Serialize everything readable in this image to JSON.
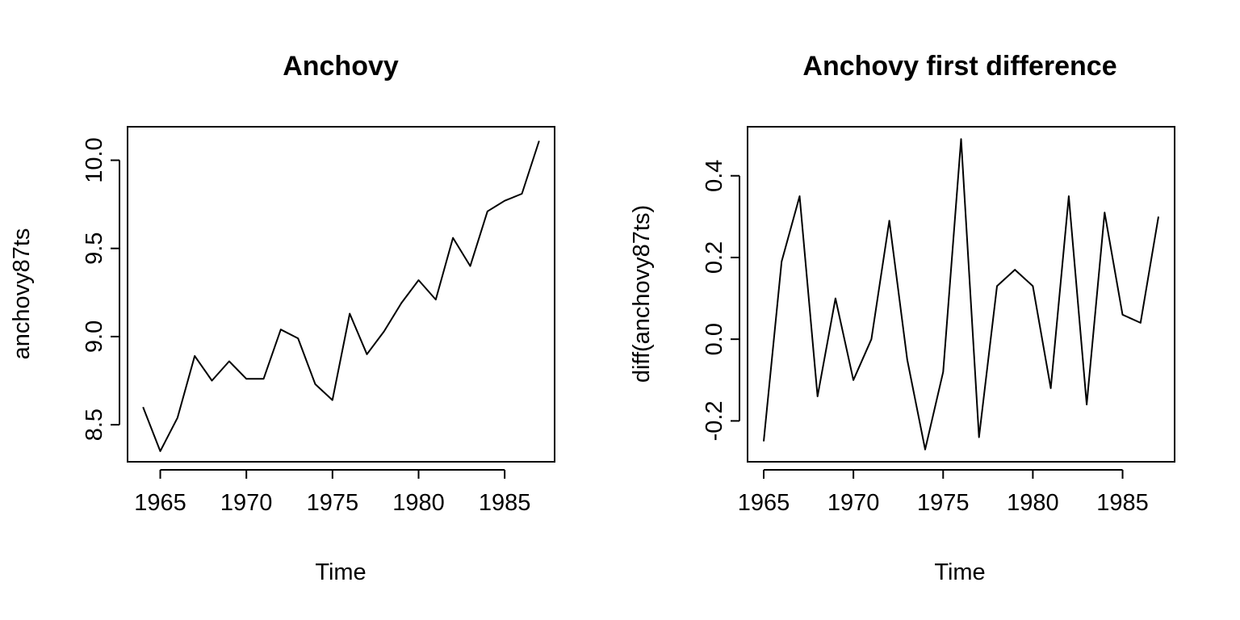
{
  "chart_data": [
    {
      "type": "line",
      "title": "Anchovy",
      "xlabel": "Time",
      "ylabel": "anchovy87ts",
      "xlim": [
        1963.1,
        1987.9
      ],
      "ylim": [
        8.29,
        10.19
      ],
      "xticks": [
        1965,
        1970,
        1975,
        1980,
        1985
      ],
      "yticks": [
        8.5,
        9.0,
        9.5,
        10.0
      ],
      "ytick_labels": [
        "8.5",
        "9.0",
        "9.5",
        "10.0"
      ],
      "grid": false,
      "series": [
        {
          "x": [
            1964,
            1965,
            1966,
            1967,
            1968,
            1969,
            1970,
            1971,
            1972,
            1973,
            1974,
            1975,
            1976,
            1977,
            1978,
            1979,
            1980,
            1981,
            1982,
            1983,
            1984,
            1985,
            1986,
            1987
          ],
          "values": [
            8.6,
            8.35,
            8.54,
            8.89,
            8.75,
            8.86,
            8.76,
            8.76,
            9.04,
            8.99,
            8.73,
            8.64,
            9.13,
            8.9,
            9.03,
            9.19,
            9.32,
            9.21,
            9.56,
            9.4,
            9.71,
            9.77,
            9.81,
            10.11
          ]
        }
      ]
    },
    {
      "type": "line",
      "title": "Anchovy first difference",
      "xlabel": "Time",
      "ylabel": "diff(anchovy87ts)",
      "xlim": [
        1964.1,
        1987.9
      ],
      "ylim": [
        -0.3,
        0.52
      ],
      "xticks": [
        1965,
        1970,
        1975,
        1980,
        1985
      ],
      "yticks": [
        -0.2,
        0.0,
        0.2,
        0.4
      ],
      "ytick_labels": [
        "-0.2",
        "0.0",
        "0.2",
        "0.4"
      ],
      "grid": false,
      "series": [
        {
          "x": [
            1965,
            1966,
            1967,
            1968,
            1969,
            1970,
            1971,
            1972,
            1973,
            1974,
            1975,
            1976,
            1977,
            1978,
            1979,
            1980,
            1981,
            1982,
            1983,
            1984,
            1985,
            1986,
            1987
          ],
          "values": [
            -0.25,
            0.19,
            0.35,
            -0.14,
            0.1,
            -0.1,
            0.0,
            0.29,
            -0.05,
            -0.27,
            -0.08,
            0.49,
            -0.24,
            0.13,
            0.17,
            0.13,
            -0.12,
            0.35,
            -0.16,
            0.31,
            0.06,
            0.04,
            0.3
          ]
        }
      ]
    }
  ]
}
